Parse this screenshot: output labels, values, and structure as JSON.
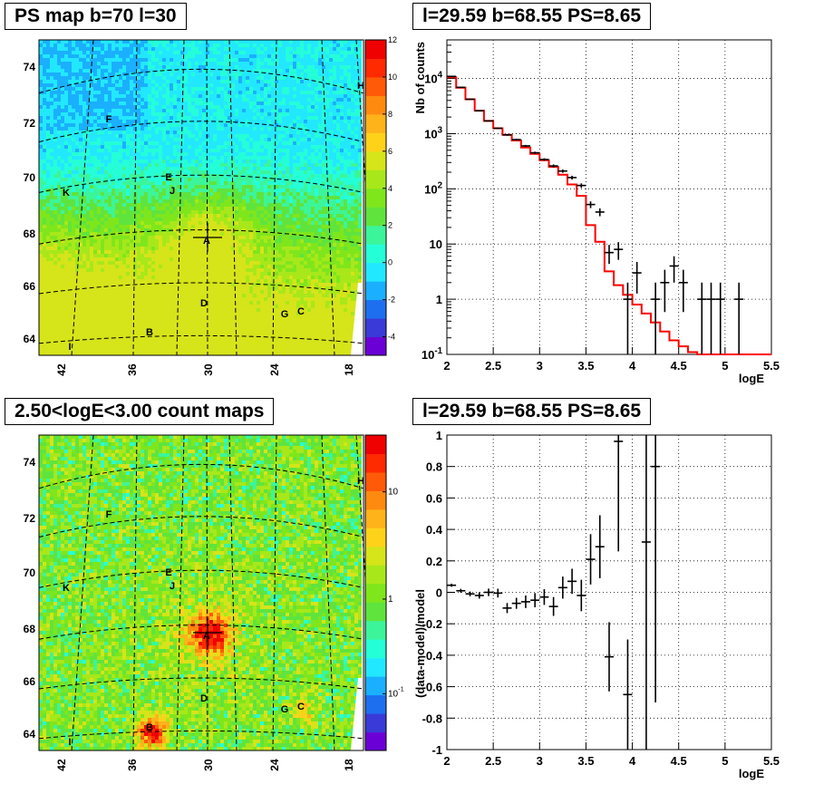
{
  "panels": {
    "top_left_title": "PS map b=70 l=30",
    "top_right_title": "l=29.59 b=68.55 PS=8.65",
    "bottom_left_title": "2.50<logE<3.00 count maps",
    "bottom_right_title": "l=29.59 b=68.55 PS=8.65"
  },
  "colors": {
    "data": "#000000",
    "model": "#ff0000",
    "grid": "#000000",
    "palette": [
      "#6a00d6",
      "#3a3ad8",
      "#1d6ff0",
      "#1ab0ff",
      "#22e8ff",
      "#25ffd8",
      "#3cf59a",
      "#5fe43e",
      "#7fe61c",
      "#a8e81a",
      "#d6e41a",
      "#ffd21a",
      "#ffb31a",
      "#ff8a10",
      "#ff5a08",
      "#ff2a00",
      "#f00000"
    ]
  },
  "chart_data": [
    {
      "type": "heatmap",
      "title": "PS map b=70 l=30",
      "x_ticks": [
        "42",
        "36",
        "30",
        "24",
        "18"
      ],
      "y_ticks": [
        "64",
        "66",
        "68",
        "70",
        "72",
        "74"
      ],
      "colorbar_ticks": [
        "-4",
        "-2",
        "0",
        "2",
        "4",
        "6",
        "8",
        "10",
        "12"
      ],
      "colorbar_range": [
        -5,
        12
      ],
      "source_labels": [
        "A",
        "B",
        "C",
        "D",
        "E",
        "F",
        "G",
        "H",
        "I",
        "J",
        "K"
      ],
      "point_source": {
        "l": 29.59,
        "b": 68.55,
        "PS": 8.65
      }
    },
    {
      "type": "line",
      "title": "l=29.59 b=68.55 PS=8.65",
      "xlabel": "logE",
      "ylabel": "Nb of counts",
      "xlim": [
        2,
        5.5
      ],
      "ylim": [
        0.1,
        50000
      ],
      "log_y": true,
      "x_ticks": [
        "2",
        "2.5",
        "3",
        "3.5",
        "4",
        "4.5",
        "5",
        "5.5"
      ],
      "y_ticks": [
        "10^{-1}",
        "1",
        "10",
        "10^{2}",
        "10^{3}",
        "10^{4}"
      ],
      "grid": true,
      "model": {
        "edges": [
          2.0,
          2.1,
          2.2,
          2.3,
          2.4,
          2.5,
          2.6,
          2.7,
          2.8,
          2.9,
          3.0,
          3.1,
          3.2,
          3.3,
          3.4,
          3.5,
          3.6,
          3.7,
          3.8,
          3.9,
          4.0,
          4.1,
          4.2,
          4.3,
          4.4,
          4.5,
          4.6,
          4.7,
          4.8,
          4.9,
          5.0,
          5.5
        ],
        "values": [
          10500,
          6800,
          4200,
          2600,
          1700,
          1250,
          950,
          750,
          560,
          430,
          330,
          250,
          180,
          120,
          75,
          22,
          11,
          3.2,
          1.8,
          1.2,
          0.8,
          0.55,
          0.38,
          0.26,
          0.18,
          0.14,
          0.11,
          0.1,
          0.1,
          0.1,
          0.1
        ]
      },
      "data": {
        "x": [
          2.05,
          2.15,
          2.25,
          2.35,
          2.45,
          2.55,
          2.65,
          2.75,
          2.85,
          2.95,
          3.05,
          3.15,
          3.25,
          3.35,
          3.45,
          3.55,
          3.65,
          3.75,
          3.85,
          3.95,
          4.05,
          4.25,
          4.35,
          4.45,
          4.55,
          4.75,
          4.85,
          4.95,
          5.15
        ],
        "y": [
          10900,
          6900,
          4200,
          2600,
          1700,
          1250,
          950,
          780,
          600,
          450,
          340,
          260,
          210,
          160,
          115,
          52,
          38,
          7,
          8,
          1,
          3,
          1,
          2,
          4,
          2,
          1,
          1,
          1,
          1
        ]
      }
    },
    {
      "type": "heatmap",
      "title": "2.50<logE<3.00 count maps",
      "x_ticks": [
        "42",
        "36",
        "30",
        "24",
        "18"
      ],
      "y_ticks": [
        "64",
        "66",
        "68",
        "70",
        "72",
        "74"
      ],
      "colorbar_ticks": [
        "10^{-1}",
        "1",
        "10"
      ],
      "colorbar_scale": "log",
      "source_labels": [
        "A",
        "B",
        "C",
        "D",
        "E",
        "F",
        "G",
        "H",
        "I",
        "J",
        "K"
      ]
    },
    {
      "type": "scatter",
      "title": "l=29.59 b=68.55 PS=8.65",
      "xlabel": "logE",
      "ylabel": "(data-model)/model",
      "xlim": [
        2,
        5.5
      ],
      "ylim": [
        -1,
        1
      ],
      "x_ticks": [
        "2",
        "2.5",
        "3",
        "3.5",
        "4",
        "4.5",
        "5",
        "5.5"
      ],
      "y_ticks": [
        "-1",
        "-0.8",
        "-0.6",
        "-0.4",
        "-0.2",
        "0",
        "0.2",
        "0.4",
        "0.6",
        "0.8",
        "1"
      ],
      "grid": true,
      "x": [
        2.05,
        2.15,
        2.25,
        2.35,
        2.45,
        2.55,
        2.65,
        2.75,
        2.85,
        2.95,
        3.05,
        3.15,
        3.25,
        3.35,
        3.45,
        3.55,
        3.65,
        3.75,
        3.85,
        3.95,
        4.15,
        4.25
      ],
      "y": [
        0.045,
        0.01,
        -0.01,
        -0.02,
        0.0,
        -0.005,
        -0.1,
        -0.07,
        -0.06,
        -0.05,
        -0.03,
        -0.09,
        0.03,
        0.07,
        -0.02,
        0.21,
        0.29,
        -0.41,
        0.96,
        -0.65,
        0.32,
        0.8
      ],
      "err": [
        0.01,
        0.012,
        0.015,
        0.02,
        0.024,
        0.028,
        0.032,
        0.035,
        0.04,
        0.045,
        0.05,
        0.06,
        0.07,
        0.08,
        0.1,
        0.16,
        0.2,
        0.22,
        0.7,
        0.35,
        1.5,
        1.5
      ]
    }
  ]
}
